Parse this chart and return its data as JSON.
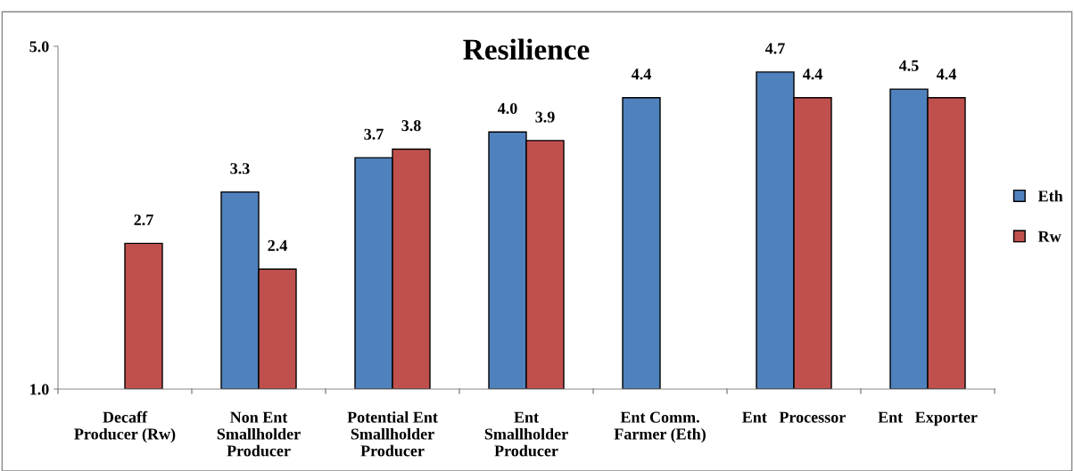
{
  "chart_data": {
    "type": "bar",
    "title": "Resilience",
    "categories": [
      "Decaff\nProducer (Rw)",
      "Non Ent\nSmallholder\nProducer",
      "Potential Ent\nSmallholder\nProducer",
      "Ent\nSmallholder\nProducer",
      "Ent Comm.\nFarmer (Eth)",
      "Ent   Processor",
      "Ent   Exporter"
    ],
    "series": [
      {
        "name": "Eth",
        "color": "#4f81bd",
        "values": [
          null,
          3.3,
          3.7,
          4.0,
          4.4,
          4.7,
          4.5
        ],
        "value_labels": [
          null,
          "3.3",
          "3.7",
          "4.0",
          "4.4",
          "4.7",
          "4.5"
        ]
      },
      {
        "name": "Rw",
        "color": "#c0504d",
        "values": [
          2.7,
          2.4,
          3.8,
          3.9,
          null,
          4.4,
          4.4
        ],
        "value_labels": [
          "2.7",
          "2.4",
          "3.8",
          "3.9",
          null,
          "4.4",
          "4.4"
        ]
      }
    ],
    "ylim": [
      1.0,
      5.0
    ],
    "yticks": [
      {
        "value": 1.0,
        "label": "1.0"
      },
      {
        "value": 5.0,
        "label": "5.0"
      }
    ],
    "legend": "right",
    "grid": false
  }
}
